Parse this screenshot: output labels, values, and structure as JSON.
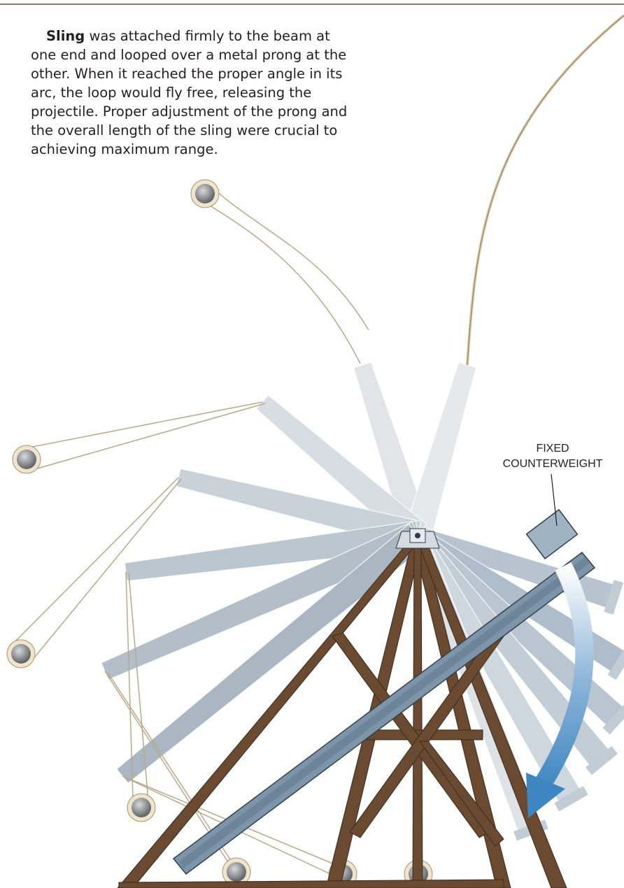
{
  "paragraph": {
    "lead": "Sling",
    "text": "was attached firmly to the beam at one end and looped over a metal prong at the other. When it reached the proper angle in its arc, the loop would fly free, releasing the projectile. Proper adjustment of the prong and the overall length of the sling were crucial to achieving maximum range."
  },
  "label": {
    "line1": "FIXED",
    "line2": "COUNTERWEIGHT"
  }
}
